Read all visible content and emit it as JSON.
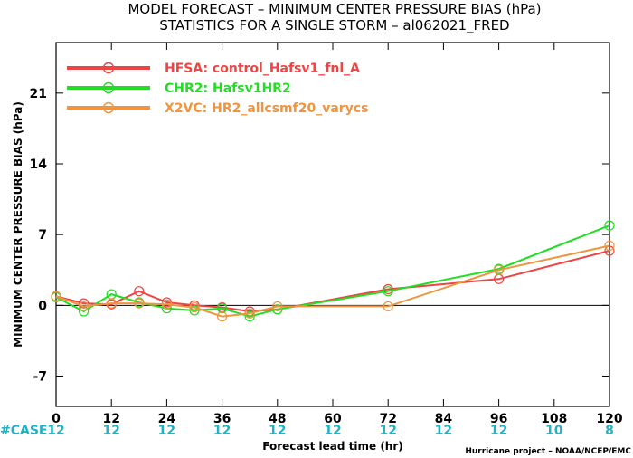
{
  "title_line1": "MODEL FORECAST – MINIMUM CENTER PRESSURE BIAS (hPa)",
  "title_line2": "STATISTICS FOR A SINGLE STORM – al062021_FRED",
  "credit": "Hurricane project – NOAA/NCEP/EMC",
  "case_label": "#CASE",
  "colors": {
    "cases": "#22b0c4",
    "zero_line": "#000000"
  },
  "chart_data": {
    "type": "line",
    "xlabel": "Forecast lead time (hr)",
    "ylabel": "MINIMUM CENTER PRESSURE BIAS (hPa)",
    "xlim": [
      0,
      120
    ],
    "ylim": [
      -10,
      26
    ],
    "xticks": [
      0,
      12,
      24,
      36,
      48,
      60,
      72,
      84,
      96,
      108,
      120
    ],
    "yticks": [
      -7,
      0,
      7,
      14,
      21
    ],
    "grid": false,
    "legend_position": "top-left",
    "cases": [
      "12",
      "12",
      "12",
      "12",
      "12",
      "12",
      "12",
      "12",
      "12",
      "10",
      "8"
    ],
    "series": [
      {
        "name": "HFSA: control_Hafsv1_fnl_A",
        "color": "#ee4444",
        "x": [
          0,
          6,
          12,
          18,
          24,
          30,
          36,
          42,
          48,
          72,
          96,
          120
        ],
        "y": [
          0.9,
          0.2,
          0.1,
          1.4,
          0.3,
          0.0,
          -0.2,
          -0.6,
          -0.4,
          1.6,
          2.6,
          5.4
        ]
      },
      {
        "name": "CHR2: Hafsv1HR2",
        "color": "#22dd22",
        "x": [
          0,
          6,
          12,
          18,
          24,
          30,
          36,
          42,
          48,
          72,
          96,
          120
        ],
        "y": [
          0.8,
          -0.6,
          1.1,
          0.3,
          -0.3,
          -0.5,
          -0.3,
          -1.1,
          -0.4,
          1.4,
          3.6,
          7.9
        ]
      },
      {
        "name": "X2VC: HR2_allcsmf20_varycs",
        "color": "#ef9540",
        "x": [
          0,
          6,
          12,
          18,
          24,
          30,
          36,
          42,
          48,
          72,
          96,
          120
        ],
        "y": [
          0.9,
          -0.1,
          0.2,
          0.2,
          0.1,
          -0.2,
          -1.1,
          -0.8,
          -0.1,
          -0.1,
          3.5,
          5.9
        ]
      }
    ]
  }
}
